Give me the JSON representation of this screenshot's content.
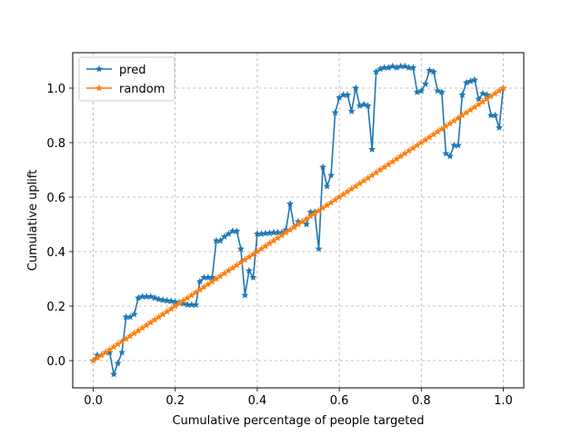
{
  "chart_data": {
    "type": "line",
    "xlabel": "Cumulative percentage of people targeted",
    "ylabel": "Cumulative uplift",
    "xlim": [
      -0.05,
      1.05
    ],
    "ylim": [
      -0.1,
      1.13
    ],
    "x_ticks": [
      0.0,
      0.2,
      0.4,
      0.6,
      0.8,
      1.0
    ],
    "x_tick_labels": [
      "0.0",
      "0.2",
      "0.4",
      "0.6",
      "0.8",
      "1.0"
    ],
    "y_ticks": [
      0.0,
      0.2,
      0.4,
      0.6,
      0.8,
      1.0
    ],
    "y_tick_labels": [
      "0.0",
      "0.2",
      "0.4",
      "0.6",
      "0.8",
      "1.0"
    ],
    "grid": true,
    "legend_position": "top-left",
    "series": [
      {
        "name": "pred",
        "color": "#1f77b4",
        "marker": "star",
        "x": [
          0.0,
          0.01,
          0.02,
          0.03,
          0.04,
          0.05,
          0.06,
          0.07,
          0.08,
          0.09,
          0.1,
          0.11,
          0.12,
          0.13,
          0.14,
          0.15,
          0.16,
          0.17,
          0.18,
          0.19,
          0.2,
          0.21,
          0.22,
          0.23,
          0.24,
          0.25,
          0.26,
          0.27,
          0.28,
          0.29,
          0.3,
          0.31,
          0.32,
          0.33,
          0.34,
          0.35,
          0.36,
          0.37,
          0.38,
          0.39,
          0.4,
          0.41,
          0.42,
          0.43,
          0.44,
          0.45,
          0.46,
          0.47,
          0.48,
          0.49,
          0.5,
          0.51,
          0.52,
          0.53,
          0.54,
          0.55,
          0.56,
          0.57,
          0.58,
          0.59,
          0.6,
          0.61,
          0.62,
          0.63,
          0.64,
          0.65,
          0.66,
          0.67,
          0.68,
          0.69,
          0.7,
          0.71,
          0.72,
          0.73,
          0.74,
          0.75,
          0.76,
          0.77,
          0.78,
          0.79,
          0.8,
          0.81,
          0.82,
          0.83,
          0.84,
          0.85,
          0.86,
          0.87,
          0.88,
          0.89,
          0.9,
          0.91,
          0.92,
          0.93,
          0.94,
          0.95,
          0.96,
          0.97,
          0.98,
          0.99,
          1.0
        ],
        "y": [
          0.0,
          0.02,
          0.02,
          0.03,
          0.03,
          -0.05,
          -0.01,
          0.03,
          0.16,
          0.16,
          0.17,
          0.23,
          0.235,
          0.235,
          0.235,
          0.23,
          0.225,
          0.222,
          0.22,
          0.218,
          0.215,
          0.213,
          0.21,
          0.205,
          0.205,
          0.205,
          0.29,
          0.305,
          0.305,
          0.305,
          0.44,
          0.44,
          0.455,
          0.465,
          0.475,
          0.475,
          0.41,
          0.24,
          0.33,
          0.305,
          0.465,
          0.465,
          0.467,
          0.468,
          0.47,
          0.47,
          0.47,
          0.48,
          0.575,
          0.49,
          0.51,
          0.51,
          0.5,
          0.545,
          0.545,
          0.41,
          0.71,
          0.64,
          0.68,
          0.91,
          0.965,
          0.975,
          0.975,
          0.915,
          1.0,
          0.935,
          0.94,
          0.935,
          0.775,
          1.06,
          1.07,
          1.075,
          1.075,
          1.08,
          1.075,
          1.08,
          1.08,
          1.075,
          1.075,
          0.985,
          0.99,
          1.015,
          1.065,
          1.06,
          0.99,
          0.985,
          0.76,
          0.75,
          0.79,
          0.79,
          0.975,
          1.02,
          1.025,
          1.03,
          0.96,
          0.98,
          0.975,
          0.9,
          0.9,
          0.855,
          1.0
        ]
      },
      {
        "name": "random",
        "color": "#ff7f0e",
        "marker": "star",
        "x": [
          0.0,
          0.01,
          0.02,
          0.03,
          0.04,
          0.05,
          0.06,
          0.07,
          0.08,
          0.09,
          0.1,
          0.11,
          0.12,
          0.13,
          0.14,
          0.15,
          0.16,
          0.17,
          0.18,
          0.19,
          0.2,
          0.21,
          0.22,
          0.23,
          0.24,
          0.25,
          0.26,
          0.27,
          0.28,
          0.29,
          0.3,
          0.31,
          0.32,
          0.33,
          0.34,
          0.35,
          0.36,
          0.37,
          0.38,
          0.39,
          0.4,
          0.41,
          0.42,
          0.43,
          0.44,
          0.45,
          0.46,
          0.47,
          0.48,
          0.49,
          0.5,
          0.51,
          0.52,
          0.53,
          0.54,
          0.55,
          0.56,
          0.57,
          0.58,
          0.59,
          0.6,
          0.61,
          0.62,
          0.63,
          0.64,
          0.65,
          0.66,
          0.67,
          0.68,
          0.69,
          0.7,
          0.71,
          0.72,
          0.73,
          0.74,
          0.75,
          0.76,
          0.77,
          0.78,
          0.79,
          0.8,
          0.81,
          0.82,
          0.83,
          0.84,
          0.85,
          0.86,
          0.87,
          0.88,
          0.89,
          0.9,
          0.91,
          0.92,
          0.93,
          0.94,
          0.95,
          0.96,
          0.97,
          0.98,
          0.99,
          1.0
        ],
        "y": [
          0.0,
          0.01,
          0.02,
          0.03,
          0.04,
          0.05,
          0.06,
          0.07,
          0.08,
          0.09,
          0.1,
          0.11,
          0.12,
          0.13,
          0.14,
          0.15,
          0.16,
          0.17,
          0.18,
          0.19,
          0.2,
          0.21,
          0.22,
          0.23,
          0.24,
          0.25,
          0.26,
          0.27,
          0.28,
          0.29,
          0.3,
          0.31,
          0.32,
          0.33,
          0.34,
          0.35,
          0.36,
          0.37,
          0.38,
          0.39,
          0.4,
          0.41,
          0.42,
          0.43,
          0.44,
          0.45,
          0.46,
          0.47,
          0.48,
          0.49,
          0.5,
          0.51,
          0.52,
          0.53,
          0.54,
          0.55,
          0.56,
          0.57,
          0.58,
          0.59,
          0.6,
          0.61,
          0.62,
          0.63,
          0.64,
          0.65,
          0.66,
          0.67,
          0.68,
          0.69,
          0.7,
          0.71,
          0.72,
          0.73,
          0.74,
          0.75,
          0.76,
          0.77,
          0.78,
          0.79,
          0.8,
          0.81,
          0.82,
          0.83,
          0.84,
          0.85,
          0.86,
          0.87,
          0.88,
          0.89,
          0.9,
          0.91,
          0.92,
          0.93,
          0.94,
          0.95,
          0.96,
          0.97,
          0.98,
          0.99,
          1.0
        ]
      }
    ]
  }
}
